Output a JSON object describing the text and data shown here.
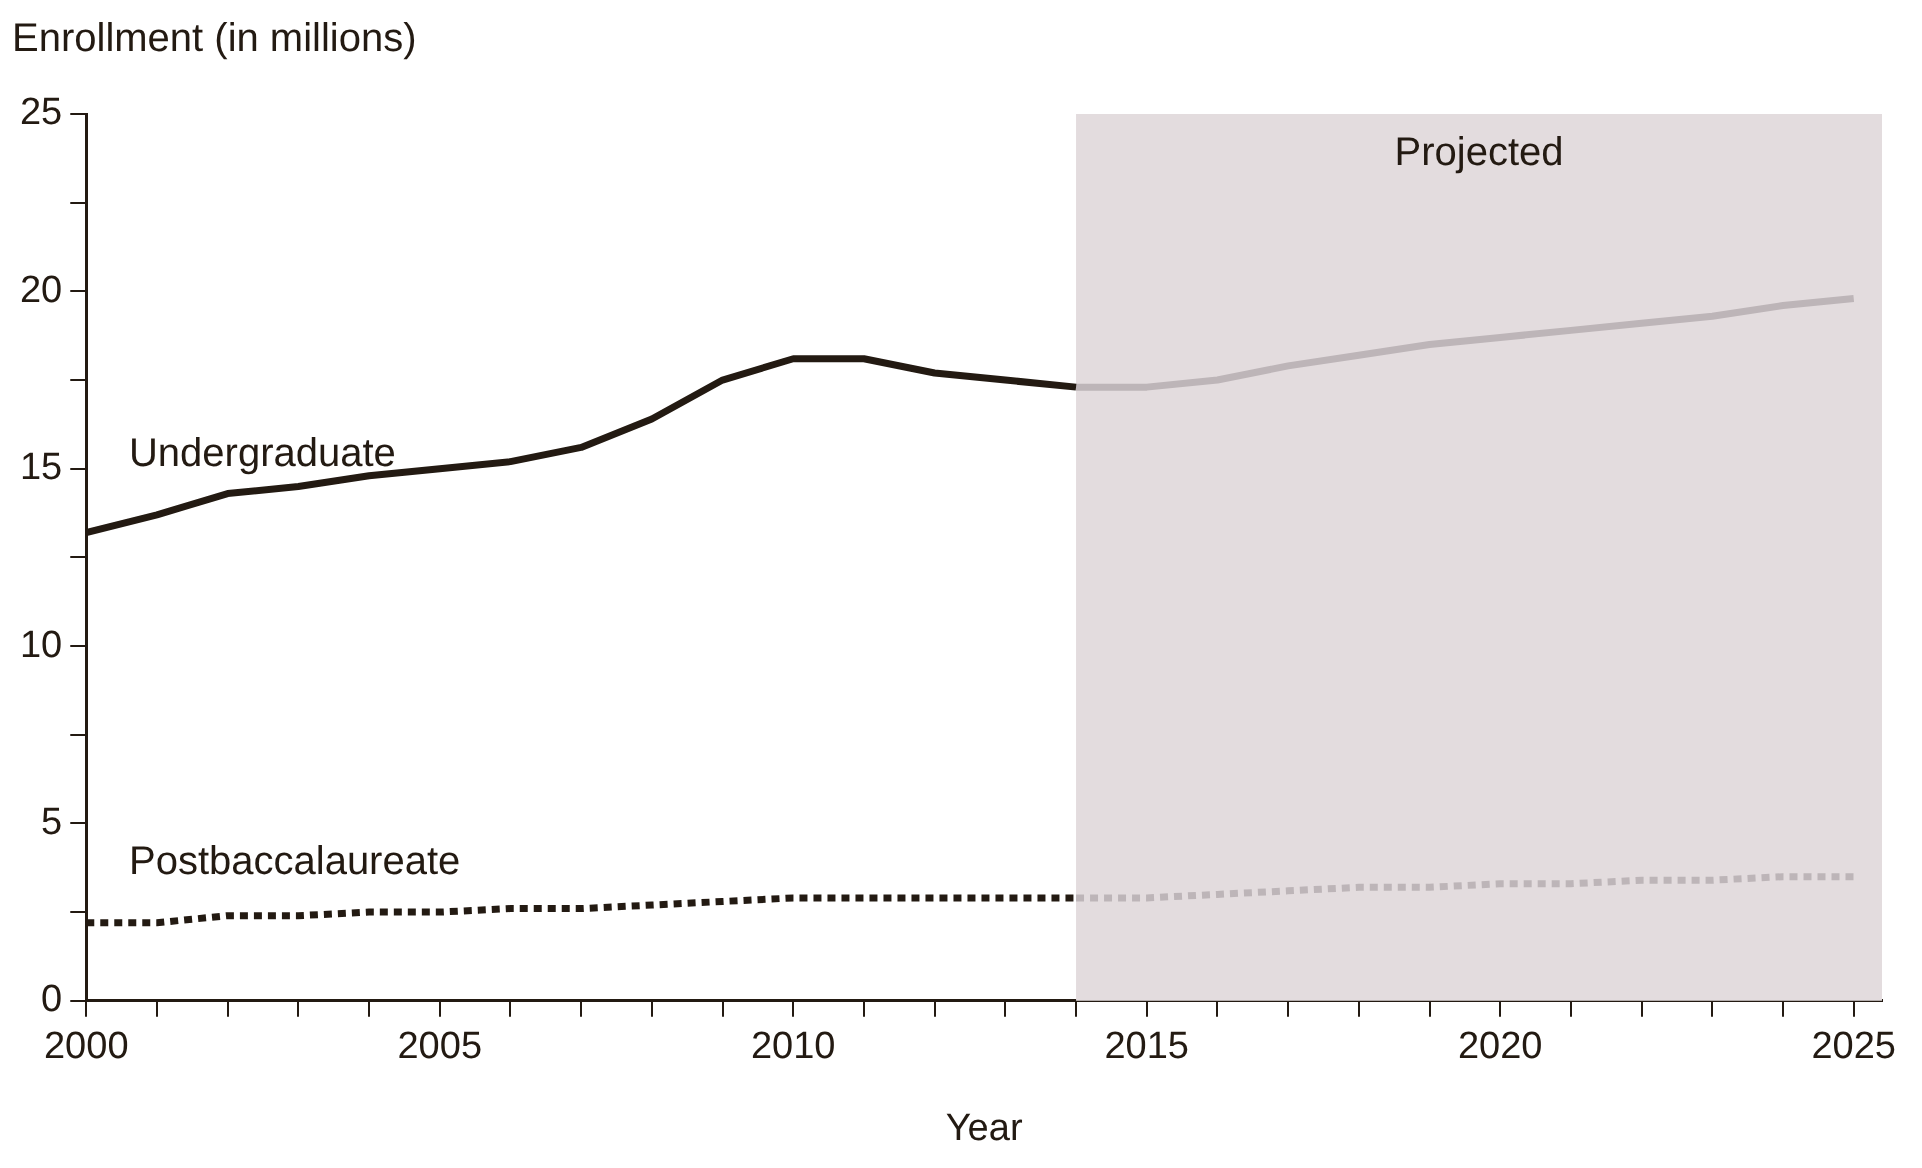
{
  "chart_data": {
    "type": "line",
    "xlabel": "Year",
    "ylabel": "Enrollment (in millions)",
    "xlim": [
      2000,
      2025.4
    ],
    "xticks": [
      2000,
      {
        "value": 2001,
        "label": null
      },
      {
        "value": 2002,
        "label": null
      },
      {
        "value": 2003,
        "label": null
      },
      {
        "value": 2004,
        "label": null
      },
      2005,
      {
        "value": 2006,
        "label": null
      },
      {
        "value": 2007,
        "label": null
      },
      {
        "value": 2008,
        "label": null
      },
      {
        "value": 2009,
        "label": null
      },
      2010,
      {
        "value": 2011,
        "label": null
      },
      {
        "value": 2012,
        "label": null
      },
      {
        "value": 2013,
        "label": null
      },
      {
        "value": 2014,
        "label": null
      },
      2015,
      {
        "value": 2016,
        "label": null
      },
      {
        "value": 2017,
        "label": null
      },
      {
        "value": 2018,
        "label": null
      },
      {
        "value": 2019,
        "label": null
      },
      2020,
      {
        "value": 2021,
        "label": null
      },
      {
        "value": 2022,
        "label": null
      },
      {
        "value": 2023,
        "label": null
      },
      {
        "value": 2024,
        "label": null
      },
      2025
    ],
    "ylim": [
      0,
      25
    ],
    "yticks": [
      0,
      {
        "value": 2.5,
        "label": null
      },
      5,
      {
        "value": 7.5,
        "label": null
      },
      10,
      {
        "value": 12.5,
        "label": null
      },
      15,
      {
        "value": 17.5,
        "label": null
      },
      20,
      {
        "value": 22.5,
        "label": null
      },
      25
    ],
    "grid": false,
    "legend": false,
    "marker": "none",
    "bands": [
      {
        "axis": "x",
        "from": 2014,
        "to": 2025.4,
        "label": "Projected",
        "color": "#e3dcde"
      }
    ],
    "series": [
      {
        "name": "Undergraduate",
        "color": "#231a12",
        "line_style": "solid",
        "x": [
          2000,
          2001,
          2002,
          2003,
          2004,
          2005,
          2006,
          2007,
          2008,
          2009,
          2010,
          2011,
          2012,
          2013,
          2014
        ],
        "values": [
          13.2,
          13.7,
          14.3,
          14.5,
          14.8,
          15.0,
          15.2,
          15.6,
          16.4,
          17.5,
          18.1,
          18.1,
          17.7,
          17.5,
          17.3
        ]
      },
      {
        "color": "#bdb5b8",
        "line_style": "solid",
        "x": [
          2014,
          2015,
          2016,
          2017,
          2018,
          2019,
          2020,
          2021,
          2022,
          2023,
          2024,
          2025
        ],
        "values": [
          17.3,
          17.3,
          17.5,
          17.9,
          18.2,
          18.5,
          18.7,
          18.9,
          19.1,
          19.3,
          19.6,
          19.8
        ]
      },
      {
        "name": "Postbaccalaureate",
        "color": "#231a12",
        "line_style": "dotted",
        "x": [
          2000,
          2001,
          2002,
          2003,
          2004,
          2005,
          2006,
          2007,
          2008,
          2009,
          2010,
          2011,
          2012,
          2013,
          2014
        ],
        "values": [
          2.2,
          2.2,
          2.4,
          2.4,
          2.5,
          2.5,
          2.6,
          2.6,
          2.7,
          2.8,
          2.9,
          2.9,
          2.9,
          2.9,
          2.9
        ]
      },
      {
        "color": "#bdb5b8",
        "line_style": "dotted",
        "x": [
          2014,
          2015,
          2016,
          2017,
          2018,
          2019,
          2020,
          2021,
          2022,
          2023,
          2024,
          2025
        ],
        "values": [
          2.9,
          2.9,
          3.0,
          3.1,
          3.2,
          3.2,
          3.3,
          3.3,
          3.4,
          3.4,
          3.5,
          3.5
        ]
      }
    ]
  }
}
